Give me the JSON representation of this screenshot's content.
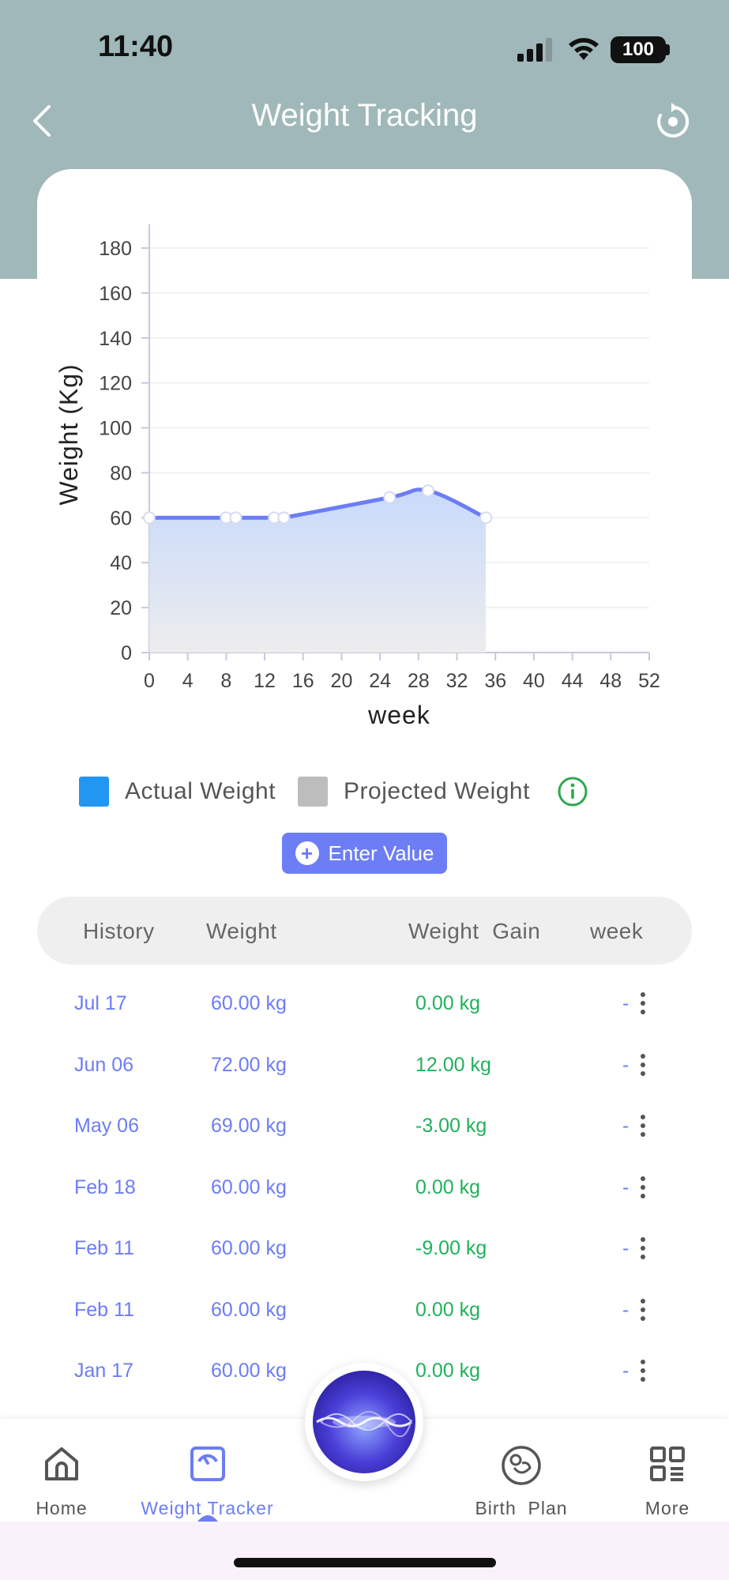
{
  "status": {
    "time": "11:40",
    "battery": "100"
  },
  "header": {
    "title": "Weight Tracking"
  },
  "chart_data": {
    "type": "area",
    "title": "",
    "xlabel": "week",
    "ylabel": "Weight (Kg)",
    "xlim": [
      0,
      52
    ],
    "ylim": [
      0,
      180
    ],
    "x_ticks": [
      0,
      4,
      8,
      12,
      16,
      20,
      24,
      28,
      32,
      36,
      40,
      44,
      48,
      52
    ],
    "y_ticks": [
      0,
      20,
      40,
      60,
      80,
      100,
      120,
      140,
      160,
      180
    ],
    "grid": true,
    "series": [
      {
        "name": "Actual Weight",
        "x": [
          0,
          8,
          9,
          13,
          14,
          25,
          29,
          35
        ],
        "y": [
          60,
          60,
          60,
          60,
          60,
          69,
          72,
          60
        ]
      }
    ],
    "legend": [
      "Actual Weight",
      "Projected Weight"
    ]
  },
  "legend": {
    "actual_label": "Actual Weight",
    "actual_color": "#2196f3",
    "projected_label": "Projected Weight",
    "projected_color": "#bdbdbd"
  },
  "enter_button": {
    "label": "Enter Value"
  },
  "table": {
    "headers": {
      "history": "History",
      "weight": "Weight",
      "gain": "Weight  Gain",
      "week": "week"
    },
    "rows": [
      {
        "date": "Jul 17",
        "weight": "60.00 kg",
        "gain": "0.00 kg",
        "week": "-"
      },
      {
        "date": "Jun 06",
        "weight": "72.00 kg",
        "gain": "12.00 kg",
        "week": "-"
      },
      {
        "date": "May 06",
        "weight": "69.00 kg",
        "gain": "-3.00 kg",
        "week": "-"
      },
      {
        "date": "Feb 18",
        "weight": "60.00 kg",
        "gain": "0.00 kg",
        "week": "-"
      },
      {
        "date": "Feb 11",
        "weight": "60.00 kg",
        "gain": "-9.00 kg",
        "week": "-"
      },
      {
        "date": "Feb 11",
        "weight": "60.00 kg",
        "gain": "0.00 kg",
        "week": "-"
      },
      {
        "date": "Jan 17",
        "weight": "60.00 kg",
        "gain": "0.00 kg",
        "week": "-"
      }
    ]
  },
  "tabs": {
    "home": "Home",
    "weight_tracker": "Weight Tracker",
    "birth_plan": "Birth  Plan",
    "more": "More"
  },
  "colors": {
    "accent": "#6c7df5",
    "positive": "#20b15c",
    "header_bg": "#a0b8b9"
  }
}
